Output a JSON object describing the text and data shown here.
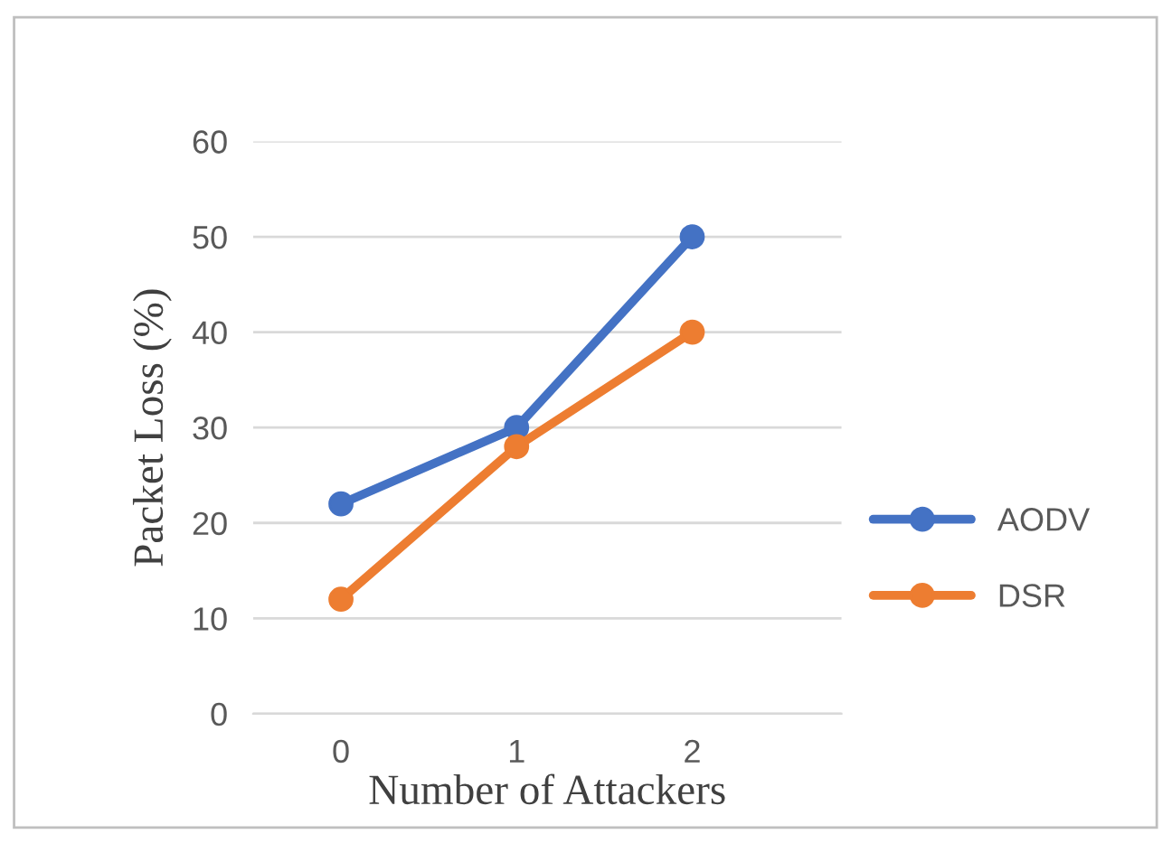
{
  "chart_data": {
    "type": "line",
    "xlabel": "Number of Attackers",
    "ylabel": "Packet Loss (%)",
    "categories": [
      "0",
      "1",
      "2"
    ],
    "series": [
      {
        "name": "AODV",
        "color": "#4472c4",
        "values": [
          22,
          30,
          50
        ]
      },
      {
        "name": "DSR",
        "color": "#ed7d31",
        "values": [
          12,
          28,
          40
        ]
      }
    ],
    "ylim": [
      0,
      60
    ],
    "yticks": [
      0,
      10,
      20,
      30,
      40,
      50,
      60
    ],
    "grid": "y",
    "legend": "right",
    "marker": "circle",
    "line_style": "solid"
  }
}
